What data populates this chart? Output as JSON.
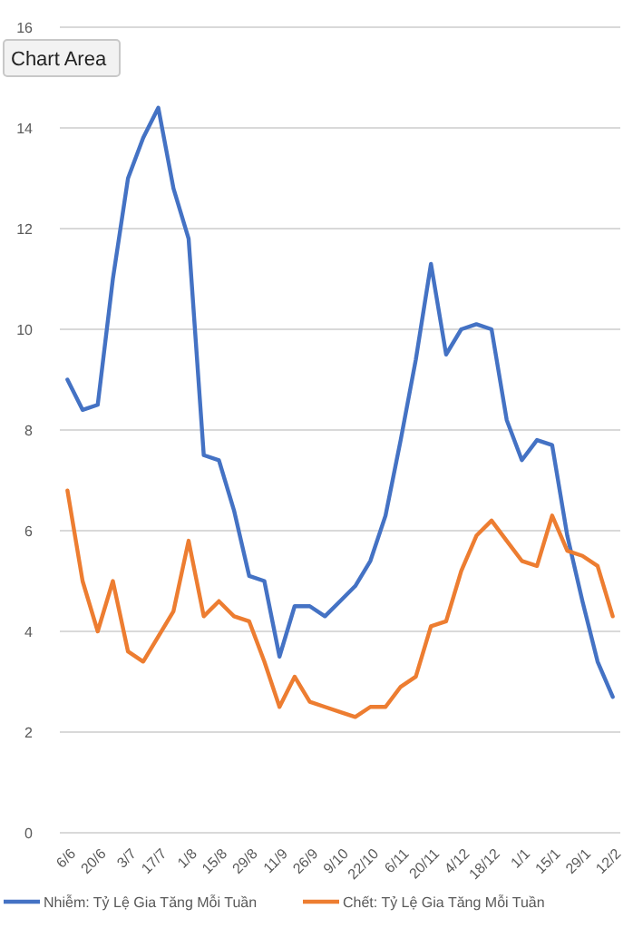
{
  "chart_data": {
    "type": "line",
    "categories": [
      "6/6",
      null,
      "20/6",
      null,
      "3/7",
      null,
      "17/7",
      null,
      "1/8",
      null,
      "15/8",
      null,
      "29/8",
      null,
      "11/9",
      null,
      "26/9",
      null,
      "9/10",
      null,
      "22/10",
      null,
      "6/11",
      null,
      "20/11",
      null,
      "4/12",
      null,
      "18/12",
      null,
      "1/1",
      null,
      "15/1",
      null,
      "29/1",
      null,
      "12/2"
    ],
    "series": [
      {
        "name": "Nhiễm: Tỷ Lệ Gia Tăng Mỗi Tuần",
        "color": "#4472c4",
        "values": [
          9.0,
          8.4,
          8.5,
          11.0,
          13.0,
          13.8,
          14.4,
          12.8,
          11.8,
          7.5,
          7.4,
          6.4,
          5.1,
          5.0,
          3.5,
          4.5,
          4.5,
          4.3,
          4.6,
          4.9,
          5.4,
          6.3,
          7.8,
          9.4,
          11.3,
          9.5,
          10.0,
          10.1,
          10.0,
          8.2,
          7.4,
          7.8,
          7.7,
          5.9,
          4.6,
          3.4,
          2.7
        ]
      },
      {
        "name": "Chết: Tỷ Lệ Gia Tăng Mỗi Tuần",
        "color": "#ed7d31",
        "values": [
          6.8,
          5.0,
          4.0,
          5.0,
          3.6,
          3.4,
          3.9,
          4.4,
          5.8,
          4.3,
          4.6,
          4.3,
          4.2,
          3.4,
          2.5,
          3.1,
          2.6,
          2.5,
          2.4,
          2.3,
          2.5,
          2.5,
          2.9,
          3.1,
          4.1,
          4.2,
          5.2,
          5.9,
          6.2,
          5.8,
          5.4,
          5.3,
          6.3,
          5.6,
          5.5,
          5.3,
          4.3
        ]
      }
    ],
    "ylim": [
      0,
      16
    ],
    "yticks": [
      0,
      2,
      4,
      6,
      8,
      10,
      12,
      14,
      16
    ],
    "grid": "y",
    "legend": "bottom",
    "marker": "none",
    "line_style": "solid",
    "annotations": [
      "Chart Area"
    ]
  }
}
